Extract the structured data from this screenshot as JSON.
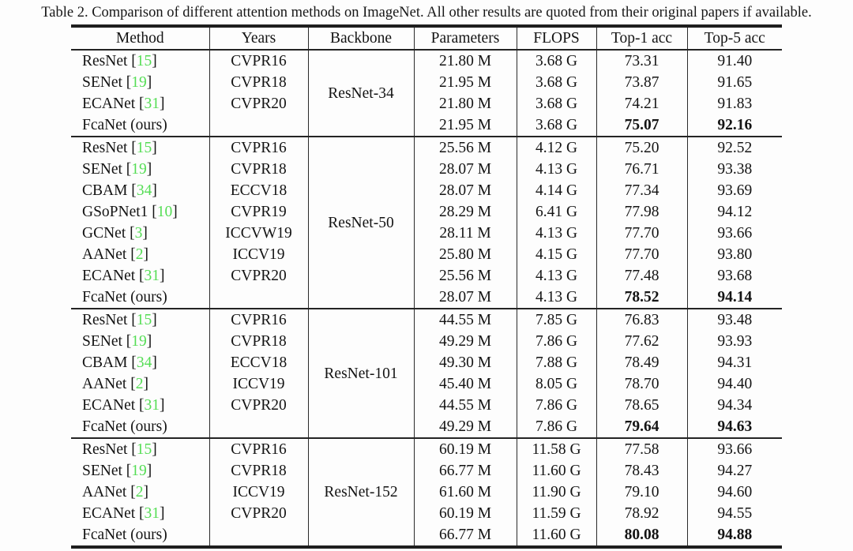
{
  "caption": "Table 2. Comparison of different attention methods on ImageNet. All other results are quoted from their original papers if available.",
  "colors": {
    "citation_green": "#55dd55",
    "text": "#141414",
    "rule": "#242424",
    "background": "#fdfdfd"
  },
  "table": {
    "headers": [
      "Method",
      "Years",
      "Backbone",
      "Parameters",
      "FLOPS",
      "Top-1 acc",
      "Top-5 acc"
    ],
    "groups": [
      {
        "backbone": "ResNet-34",
        "rows": [
          {
            "method": "ResNet",
            "cite": "15",
            "years": "CVPR16",
            "params": "21.80 M",
            "flops": "3.68 G",
            "top1": "73.31",
            "top5": "91.40",
            "bold": false
          },
          {
            "method": "SENet",
            "cite": "19",
            "years": "CVPR18",
            "params": "21.95 M",
            "flops": "3.68 G",
            "top1": "73.87",
            "top5": "91.65",
            "bold": false
          },
          {
            "method": "ECANet",
            "cite": "31",
            "years": "CVPR20",
            "params": "21.80 M",
            "flops": "3.68 G",
            "top1": "74.21",
            "top5": "91.83",
            "bold": false
          },
          {
            "method": "FcaNet (ours)",
            "cite": null,
            "years": "",
            "params": "21.95 M",
            "flops": "3.68 G",
            "top1": "75.07",
            "top5": "92.16",
            "bold": true
          }
        ]
      },
      {
        "backbone": "ResNet-50",
        "rows": [
          {
            "method": "ResNet",
            "cite": "15",
            "years": "CVPR16",
            "params": "25.56 M",
            "flops": "4.12 G",
            "top1": "75.20",
            "top5": "92.52",
            "bold": false
          },
          {
            "method": "SENet",
            "cite": "19",
            "years": "CVPR18",
            "params": "28.07 M",
            "flops": "4.13 G",
            "top1": "76.71",
            "top5": "93.38",
            "bold": false
          },
          {
            "method": "CBAM",
            "cite": "34",
            "years": "ECCV18",
            "params": "28.07 M",
            "flops": "4.14 G",
            "top1": "77.34",
            "top5": "93.69",
            "bold": false
          },
          {
            "method": "GSoPNet1",
            "cite": "10",
            "years": "CVPR19",
            "params": "28.29 M",
            "flops": "6.41 G",
            "top1": "77.98",
            "top5": "94.12",
            "bold": false
          },
          {
            "method": "GCNet",
            "cite": "3",
            "years": "ICCVW19",
            "params": "28.11 M",
            "flops": "4.13 G",
            "top1": "77.70",
            "top5": "93.66",
            "bold": false
          },
          {
            "method": "AANet",
            "cite": "2",
            "years": "ICCV19",
            "params": "25.80 M",
            "flops": "4.15 G",
            "top1": "77.70",
            "top5": "93.80",
            "bold": false
          },
          {
            "method": "ECANet",
            "cite": "31",
            "years": "CVPR20",
            "params": "25.56 M",
            "flops": "4.13 G",
            "top1": "77.48",
            "top5": "93.68",
            "bold": false
          },
          {
            "method": "FcaNet (ours)",
            "cite": null,
            "years": "",
            "params": "28.07 M",
            "flops": "4.13 G",
            "top1": "78.52",
            "top5": "94.14",
            "bold": true
          }
        ]
      },
      {
        "backbone": "ResNet-101",
        "rows": [
          {
            "method": "ResNet",
            "cite": "15",
            "years": "CVPR16",
            "params": "44.55 M",
            "flops": "7.85 G",
            "top1": "76.83",
            "top5": "93.48",
            "bold": false
          },
          {
            "method": "SENet",
            "cite": "19",
            "years": "CVPR18",
            "params": "49.29 M",
            "flops": "7.86 G",
            "top1": "77.62",
            "top5": "93.93",
            "bold": false
          },
          {
            "method": "CBAM",
            "cite": "34",
            "years": "ECCV18",
            "params": "49.30 M",
            "flops": "7.88 G",
            "top1": "78.49",
            "top5": "94.31",
            "bold": false
          },
          {
            "method": "AANet",
            "cite": "2",
            "years": "ICCV19",
            "params": "45.40 M",
            "flops": "8.05 G",
            "top1": "78.70",
            "top5": "94.40",
            "bold": false
          },
          {
            "method": "ECANet",
            "cite": "31",
            "years": "CVPR20",
            "params": "44.55 M",
            "flops": "7.86 G",
            "top1": "78.65",
            "top5": "94.34",
            "bold": false
          },
          {
            "method": "FcaNet (ours)",
            "cite": null,
            "years": "",
            "params": "49.29 M",
            "flops": "7.86 G",
            "top1": "79.64",
            "top5": "94.63",
            "bold": true
          }
        ]
      },
      {
        "backbone": "ResNet-152",
        "rows": [
          {
            "method": "ResNet",
            "cite": "15",
            "years": "CVPR16",
            "params": "60.19 M",
            "flops": "11.58 G",
            "top1": "77.58",
            "top5": "93.66",
            "bold": false
          },
          {
            "method": "SENet",
            "cite": "19",
            "years": "CVPR18",
            "params": "66.77 M",
            "flops": "11.60 G",
            "top1": "78.43",
            "top5": "94.27",
            "bold": false
          },
          {
            "method": "AANet",
            "cite": "2",
            "years": "ICCV19",
            "params": "61.60 M",
            "flops": "11.90 G",
            "top1": "79.10",
            "top5": "94.60",
            "bold": false
          },
          {
            "method": "ECANet",
            "cite": "31",
            "years": "CVPR20",
            "params": "60.19 M",
            "flops": "11.59 G",
            "top1": "78.92",
            "top5": "94.55",
            "bold": false
          },
          {
            "method": "FcaNet (ours)",
            "cite": null,
            "years": "",
            "params": "66.77 M",
            "flops": "11.60 G",
            "top1": "80.08",
            "top5": "94.88",
            "bold": true
          }
        ]
      }
    ]
  }
}
